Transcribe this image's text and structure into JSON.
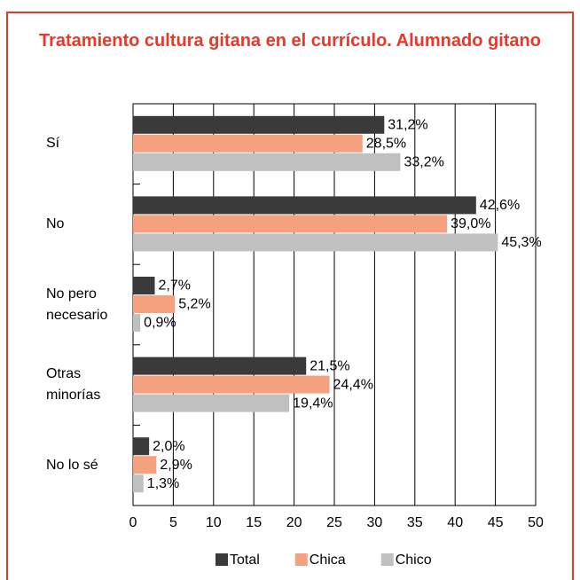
{
  "chart_data": {
    "type": "barh",
    "title": "Tratamiento cultura gitana en el currículo. Alumnado gitano",
    "categories": [
      "Sí",
      "No",
      "No pero necesario",
      "Otras minorías",
      "No lo sé"
    ],
    "series": [
      {
        "name": "Total",
        "color": "#3a3a3a",
        "values": [
          31.2,
          42.6,
          2.7,
          21.5,
          2.0
        ],
        "value_labels": [
          "31,2%",
          "42,6%",
          "2,7%",
          "21,5%",
          "2,0%"
        ]
      },
      {
        "name": "Chica",
        "color": "#f5a07e",
        "values": [
          28.5,
          39.0,
          5.2,
          24.4,
          2.9
        ],
        "value_labels": [
          "28,5%",
          "39,0%",
          "5,2%",
          "24,4%",
          "2,9%"
        ]
      },
      {
        "name": "Chico",
        "color": "#c0c0c0",
        "values": [
          33.2,
          45.3,
          0.9,
          19.4,
          1.3
        ],
        "value_labels": [
          "33,2%",
          "45,3%",
          "0,9%",
          "19,4%",
          "1,3%"
        ]
      }
    ],
    "xlim": [
      0,
      50
    ],
    "xticks": [
      0,
      5,
      10,
      15,
      20,
      25,
      30,
      35,
      40,
      45,
      50
    ],
    "grid": true
  }
}
